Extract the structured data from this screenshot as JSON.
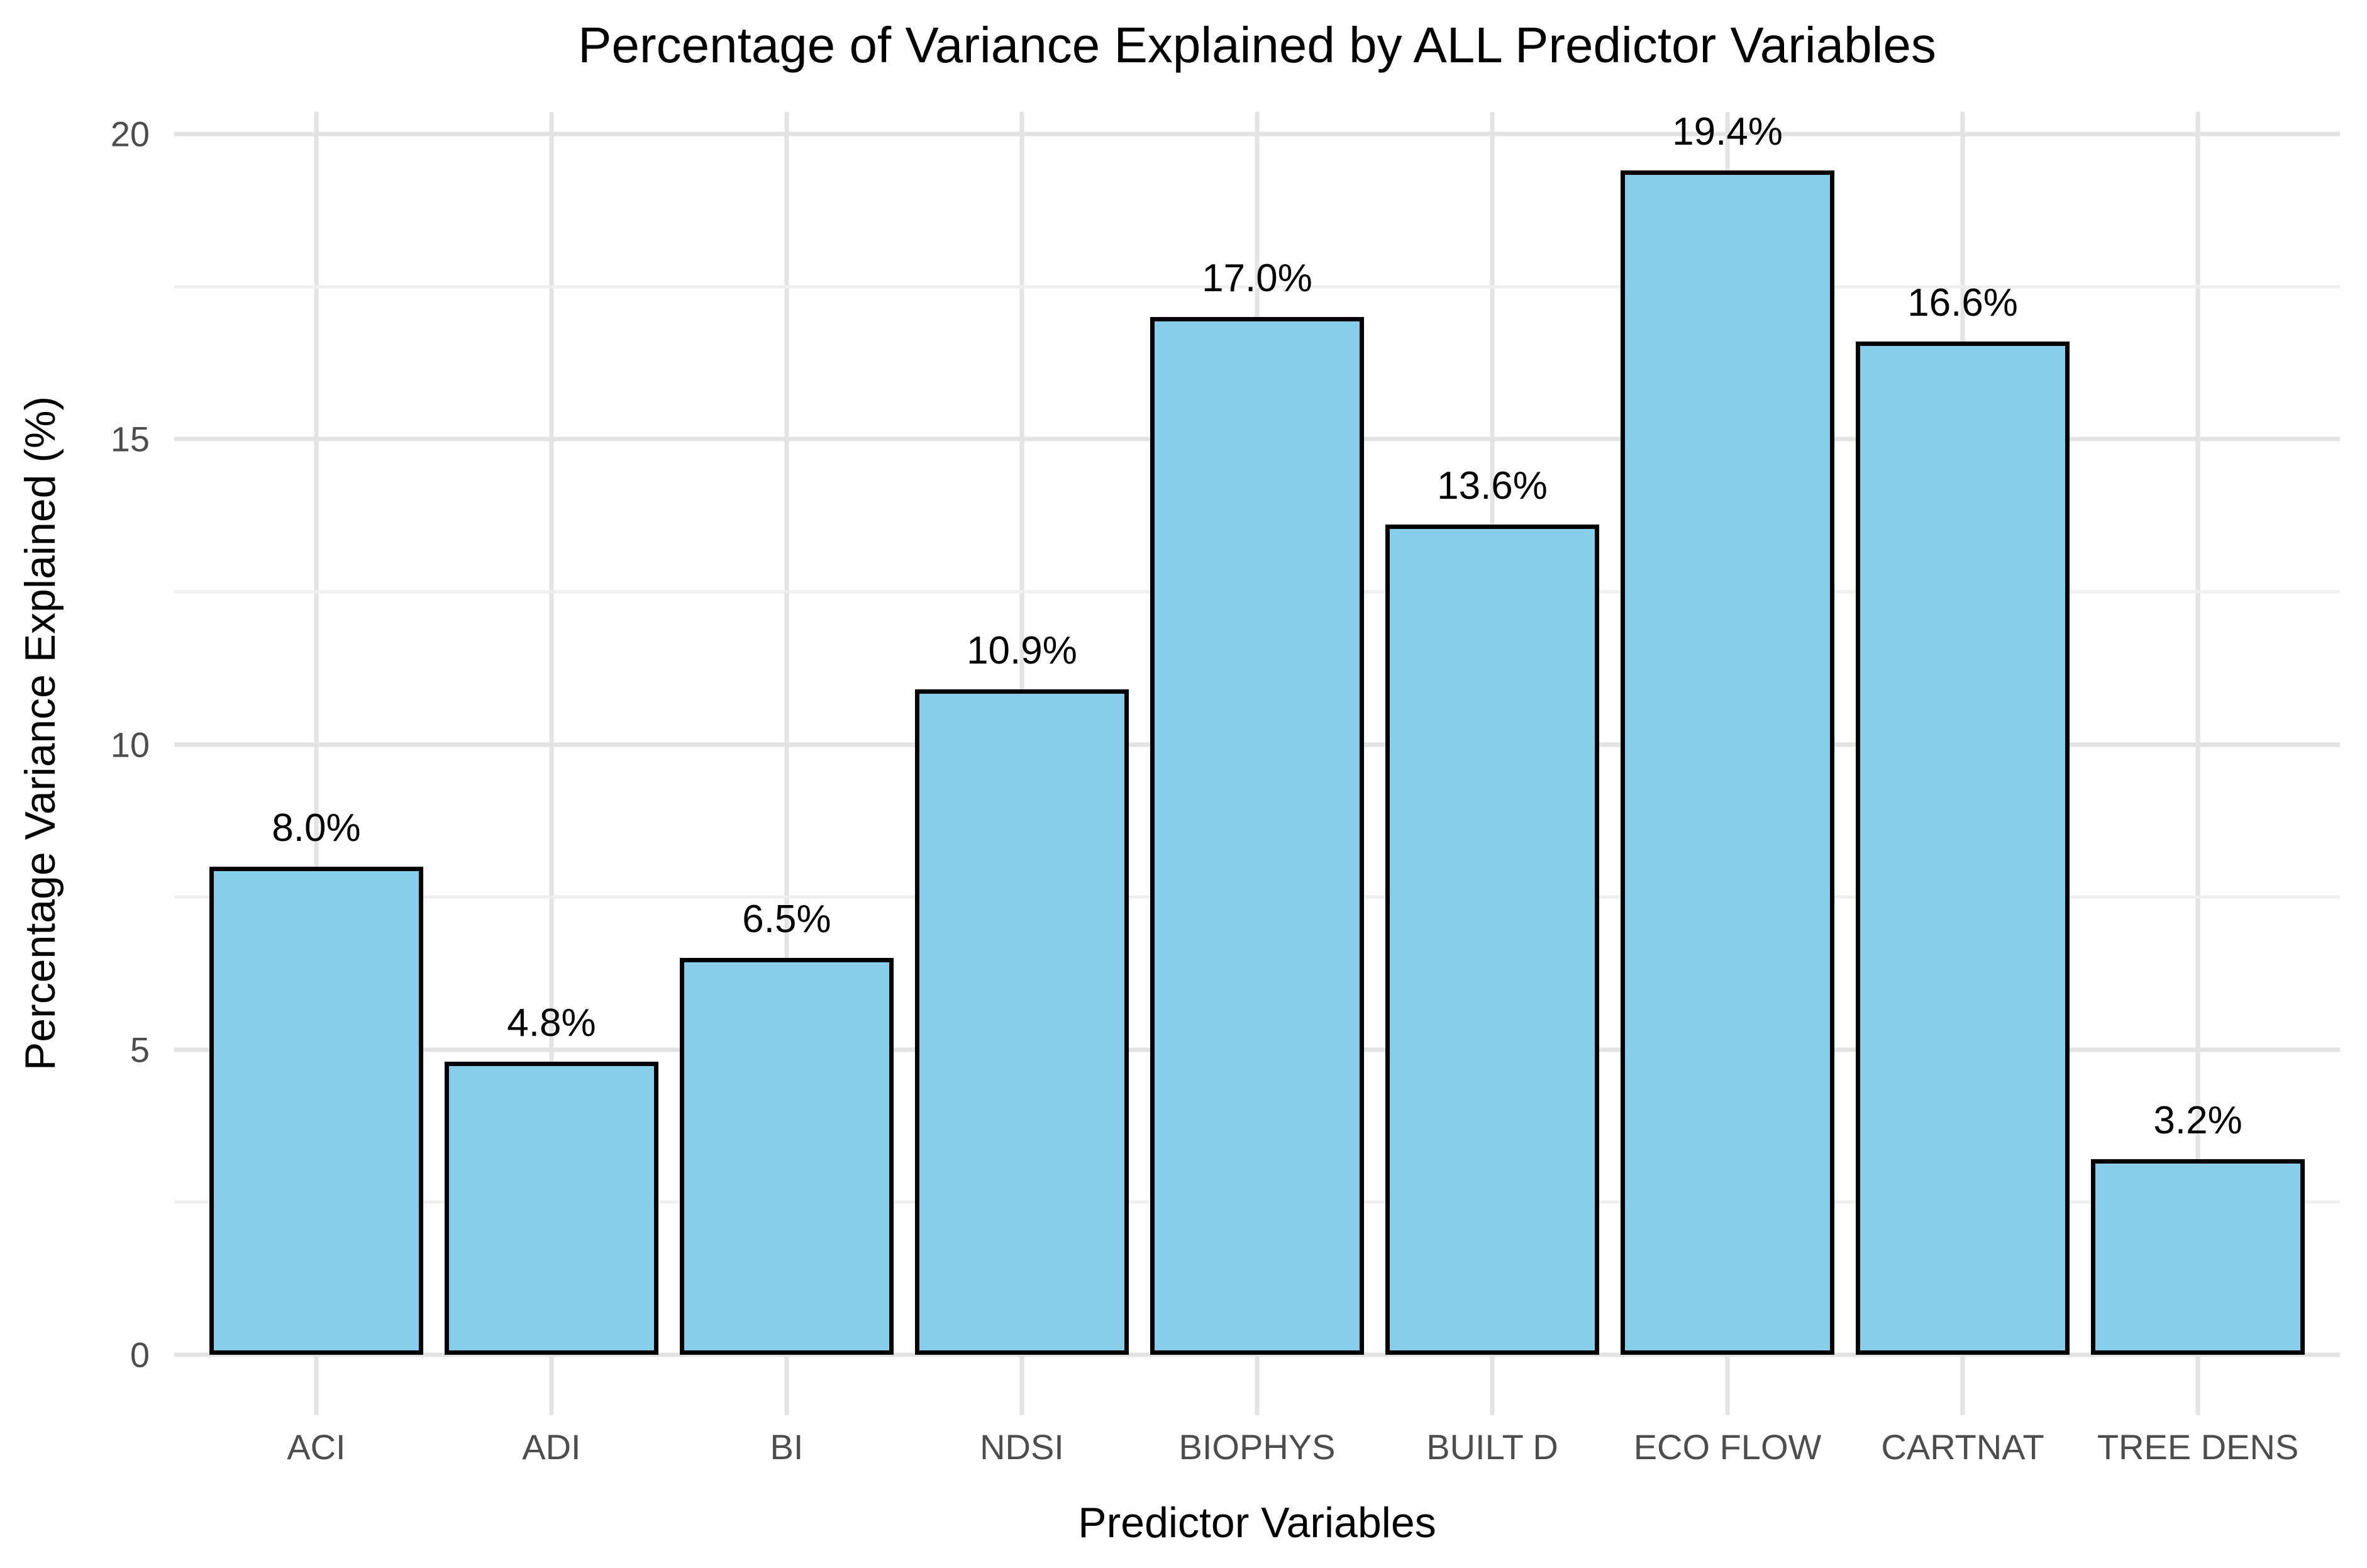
{
  "chart_data": {
    "type": "bar",
    "title": "Percentage of Variance Explained by ALL Predictor Variables",
    "xlabel": "Predictor Variables",
    "ylabel": "Percentage Variance Explained (%)",
    "categories": [
      "ACI",
      "ADI",
      "BI",
      "NDSI",
      "BIOPHYS",
      "BUILT D",
      "ECO FLOW",
      "CARTNAT",
      "TREE DENS"
    ],
    "values": [
      8.0,
      4.8,
      6.5,
      10.9,
      17.0,
      13.6,
      19.4,
      16.6,
      3.2
    ],
    "bar_labels": [
      "8.0%",
      "4.8%",
      "6.5%",
      "10.9%",
      "17.0%",
      "13.6%",
      "19.4%",
      "16.6%",
      "3.2%"
    ],
    "ylim": [
      0,
      20
    ],
    "yticks_major": [
      0,
      5,
      10,
      15,
      20
    ],
    "ytick_labels": [
      "0",
      "5",
      "10",
      "15",
      "20"
    ],
    "yticks_minor": [
      2.5,
      7.5,
      12.5,
      17.5
    ],
    "grid": "horizontal major+minor, vertical line at each category center",
    "legend": "none",
    "colors": {
      "bar_fill": "#87CEEB",
      "bar_edge": "#000000",
      "grid_major": "#e3e3e3",
      "grid_minor": "#efefef",
      "tick_label": "#4d4d4d",
      "text": "#000000",
      "background": "#ffffff"
    }
  }
}
